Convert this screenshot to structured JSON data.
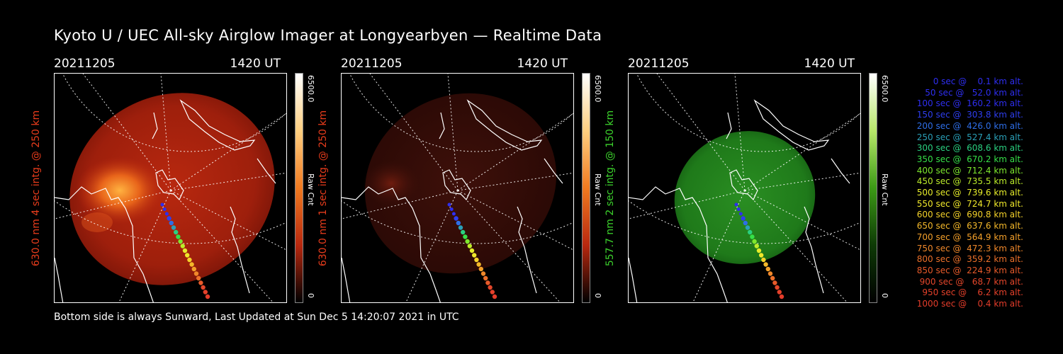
{
  "page": {
    "title": "Kyoto U / UEC All-sky Airglow Imager at Longyearbyen — Realtime Data",
    "footer": "Bottom side is always Sunward, Last Updated at Sun Dec  5 14:20:07 2021 in UTC"
  },
  "panels": [
    {
      "date": "20211205",
      "time": "1420 UT",
      "side_label": "630.0 nm 4 sec intg. @ 250 km",
      "side_color": "#e83c1c",
      "colorbar_max": "6500.0",
      "colorbar_unit": "Raw Cnt",
      "colorbar_min": "0",
      "image_color": "#b52410"
    },
    {
      "date": "20211205",
      "time": "1420 UT",
      "side_label": "630.0 nm 1 sec intg. @ 250 km",
      "side_color": "#e83c1c",
      "colorbar_max": "6500.0",
      "colorbar_unit": "Raw Cnt",
      "colorbar_min": "0",
      "image_color": "#3a0e08"
    },
    {
      "date": "20211205",
      "time": "1420 UT",
      "side_label": "557.7 nm 2 sec intg. @ 150 km",
      "side_color": "#3cd22c",
      "colorbar_max": "6500.0",
      "colorbar_unit": "Raw Cnt",
      "colorbar_min": "0",
      "image_color": "#1a8a1a"
    }
  ],
  "trajectory_legend": [
    {
      "text": "0 sec @    0.1 km alt.",
      "color": "#2e2ef0"
    },
    {
      "text": "50 sec @   52.0 km alt.",
      "color": "#2e2ef0"
    },
    {
      "text": "100 sec @  160.2 km alt.",
      "color": "#2e2ef0"
    },
    {
      "text": "150 sec @  303.8 km alt.",
      "color": "#2e3ef0"
    },
    {
      "text": "200 sec @  426.0 km alt.",
      "color": "#2e6ee8"
    },
    {
      "text": "250 sec @  527.4 km alt.",
      "color": "#2aa0b8"
    },
    {
      "text": "300 sec @  608.6 km alt.",
      "color": "#2ad080"
    },
    {
      "text": "350 sec @  670.2 km alt.",
      "color": "#36e048"
    },
    {
      "text": "400 sec @  712.4 km alt.",
      "color": "#7ee82e"
    },
    {
      "text": "450 sec @  735.5 km alt.",
      "color": "#bcec2a"
    },
    {
      "text": "500 sec @  739.6 km alt.",
      "color": "#e6ec2a"
    },
    {
      "text": "550 sec @  724.7 km alt.",
      "color": "#f0e82a"
    },
    {
      "text": "600 sec @  690.8 km alt.",
      "color": "#f4d22a"
    },
    {
      "text": "650 sec @  637.6 km alt.",
      "color": "#f4b82a"
    },
    {
      "text": "700 sec @  564.9 km alt.",
      "color": "#f4a02a"
    },
    {
      "text": "750 sec @  472.3 km alt.",
      "color": "#f0882a"
    },
    {
      "text": "800 sec @  359.2 km alt.",
      "color": "#ec702a"
    },
    {
      "text": "850 sec @  224.9 km alt.",
      "color": "#e85a2a"
    },
    {
      "text": "900 sec @   68.7 km alt.",
      "color": "#e4462a"
    },
    {
      "text": "950 sec @    6.2 km alt.",
      "color": "#e4402a"
    },
    {
      "text": "1000 sec @    0.4 km alt.",
      "color": "#e43c2a"
    }
  ]
}
